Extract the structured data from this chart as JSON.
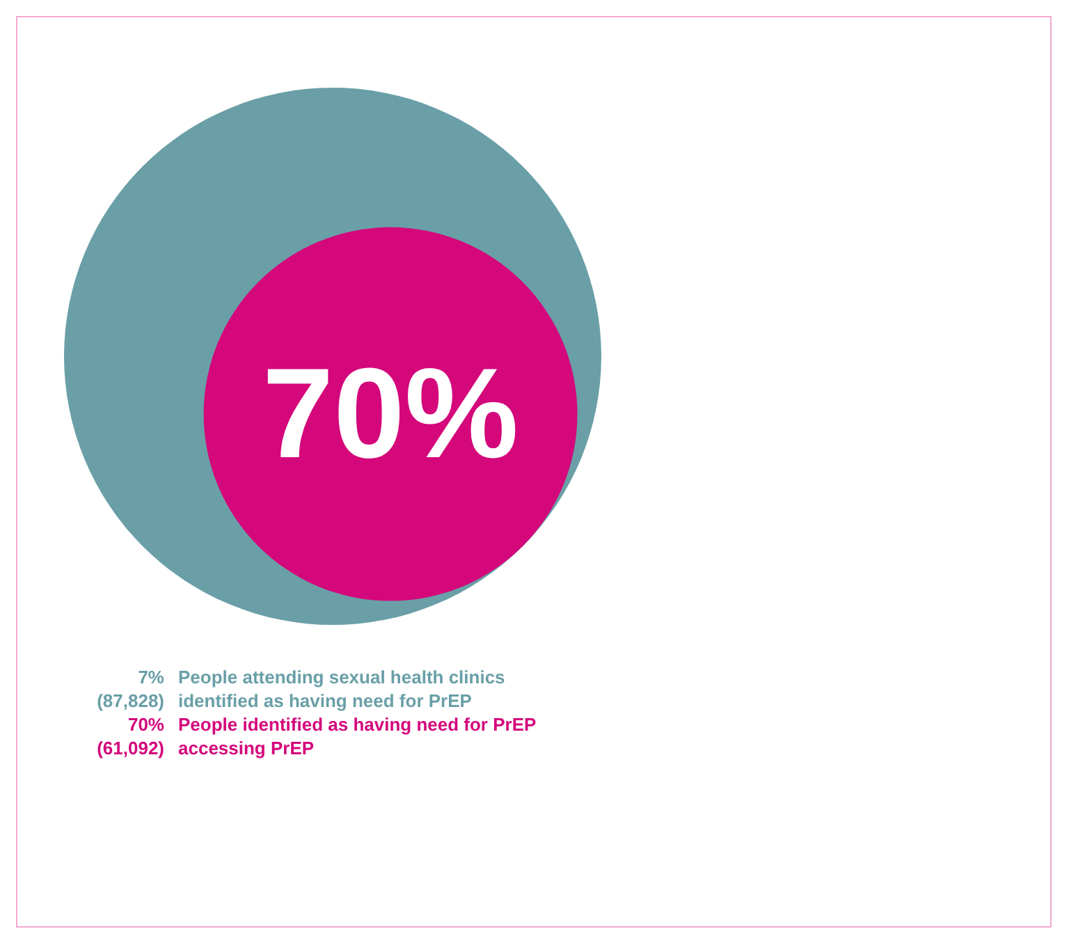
{
  "chart_data": {
    "type": "other",
    "categories": [
      "People attending sexual health clinics\nidentified as having need for PrEP",
      "People identified as having need for PrEP\naccessing PrEP"
    ],
    "values": [
      87828,
      61092
    ],
    "value_labels": [
      "(87,828)",
      "(61,092)"
    ],
    "annotations": [
      "7%",
      "70%"
    ],
    "colors": [
      "#6a9fa7",
      "#d4077b"
    ]
  }
}
